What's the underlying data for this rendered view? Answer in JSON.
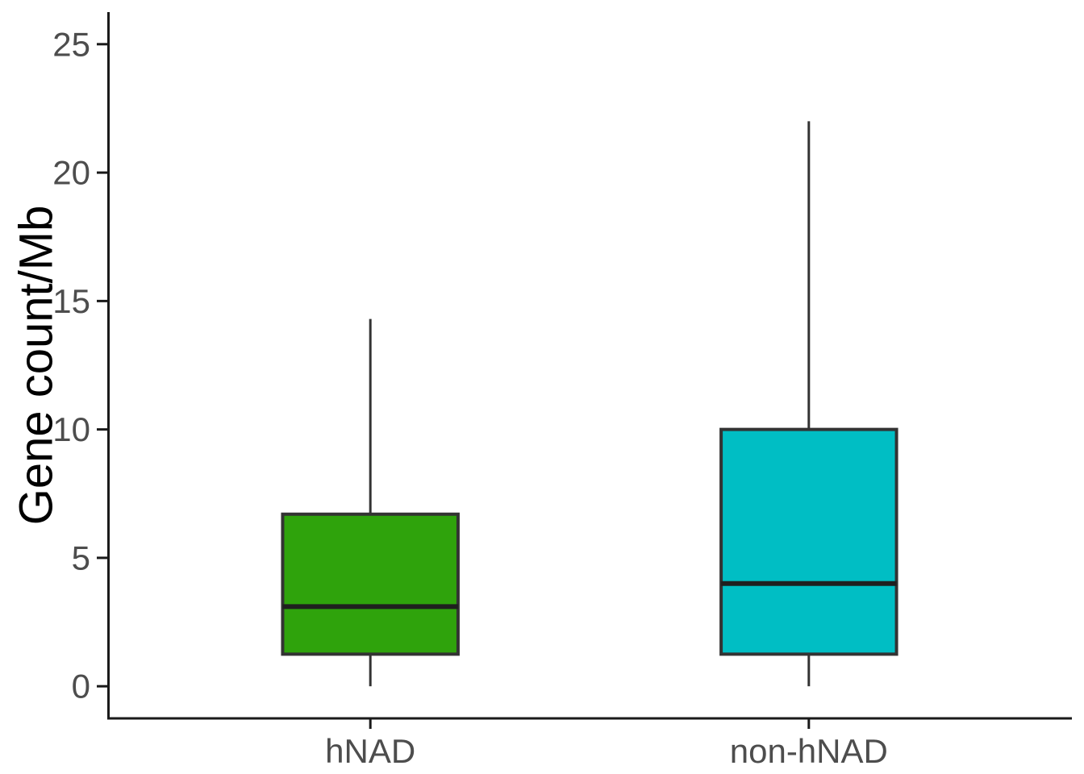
{
  "chart_data": {
    "type": "boxplot",
    "title": "",
    "xlabel": "",
    "ylabel": "Gene count/Mb",
    "ylim": [
      0,
      25
    ],
    "yticks": [
      0,
      5,
      10,
      15,
      20,
      25
    ],
    "categories": [
      "hNAD",
      "non-hNAD"
    ],
    "series": [
      {
        "name": "hNAD",
        "color": "#2FA30C",
        "whisker_low": 0,
        "q1": 1.25,
        "median": 3.1,
        "q3": 6.7,
        "whisker_high": 14.3,
        "outliers": []
      },
      {
        "name": "non-hNAD",
        "color": "#00BEC4",
        "whisker_low": 0,
        "q1": 1.25,
        "median": 4.0,
        "q3": 10.0,
        "whisker_high": 22.0,
        "outliers": []
      }
    ],
    "legend": "none",
    "grid": "off",
    "styles": {
      "box_border_color": "#333333",
      "median_color": "#1F1F1F",
      "whisker_color": "#333333",
      "axis_line_color": "#1A1A1A",
      "tick_label_color": "#4D4D4D",
      "axis_title_color": "#000000",
      "background_color": "#FFFFFF"
    }
  }
}
